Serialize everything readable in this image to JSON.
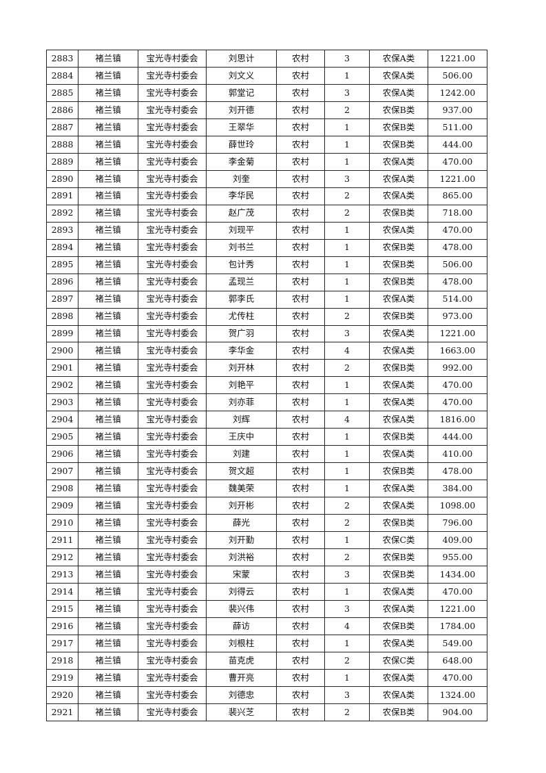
{
  "columns": [
    "seq",
    "town",
    "committee",
    "name",
    "type",
    "count",
    "category",
    "amount"
  ],
  "rows": [
    [
      "2883",
      "褚兰镇",
      "宝光寺村委会",
      "刘思计",
      "农村",
      "3",
      "农保A类",
      "1221.00"
    ],
    [
      "2884",
      "褚兰镇",
      "宝光寺村委会",
      "刘文义",
      "农村",
      "1",
      "农保A类",
      "506.00"
    ],
    [
      "2885",
      "褚兰镇",
      "宝光寺村委会",
      "郭堂记",
      "农村",
      "3",
      "农保A类",
      "1242.00"
    ],
    [
      "2886",
      "褚兰镇",
      "宝光寺村委会",
      "刘开德",
      "农村",
      "2",
      "农保B类",
      "937.00"
    ],
    [
      "2887",
      "褚兰镇",
      "宝光寺村委会",
      "王翠华",
      "农村",
      "1",
      "农保B类",
      "511.00"
    ],
    [
      "2888",
      "褚兰镇",
      "宝光寺村委会",
      "薛世玲",
      "农村",
      "1",
      "农保B类",
      "444.00"
    ],
    [
      "2889",
      "褚兰镇",
      "宝光寺村委会",
      "李金菊",
      "农村",
      "1",
      "农保A类",
      "470.00"
    ],
    [
      "2890",
      "褚兰镇",
      "宝光寺村委会",
      "刘奎",
      "农村",
      "3",
      "农保A类",
      "1221.00"
    ],
    [
      "2891",
      "褚兰镇",
      "宝光寺村委会",
      "李华民",
      "农村",
      "2",
      "农保A类",
      "865.00"
    ],
    [
      "2892",
      "褚兰镇",
      "宝光寺村委会",
      "赵广茂",
      "农村",
      "2",
      "农保B类",
      "718.00"
    ],
    [
      "2893",
      "褚兰镇",
      "宝光寺村委会",
      "刘现平",
      "农村",
      "1",
      "农保A类",
      "470.00"
    ],
    [
      "2894",
      "褚兰镇",
      "宝光寺村委会",
      "刘书兰",
      "农村",
      "1",
      "农保B类",
      "478.00"
    ],
    [
      "2895",
      "褚兰镇",
      "宝光寺村委会",
      "包计秀",
      "农村",
      "1",
      "农保B类",
      "506.00"
    ],
    [
      "2896",
      "褚兰镇",
      "宝光寺村委会",
      "孟现兰",
      "农村",
      "1",
      "农保B类",
      "478.00"
    ],
    [
      "2897",
      "褚兰镇",
      "宝光寺村委会",
      "郭李氏",
      "农村",
      "1",
      "农保A类",
      "514.00"
    ],
    [
      "2898",
      "褚兰镇",
      "宝光寺村委会",
      "尤传柱",
      "农村",
      "2",
      "农保B类",
      "973.00"
    ],
    [
      "2899",
      "褚兰镇",
      "宝光寺村委会",
      "贺广羽",
      "农村",
      "3",
      "农保A类",
      "1221.00"
    ],
    [
      "2900",
      "褚兰镇",
      "宝光寺村委会",
      "李华金",
      "农村",
      "4",
      "农保A类",
      "1663.00"
    ],
    [
      "2901",
      "褚兰镇",
      "宝光寺村委会",
      "刘开林",
      "农村",
      "2",
      "农保B类",
      "992.00"
    ],
    [
      "2902",
      "褚兰镇",
      "宝光寺村委会",
      "刘艳平",
      "农村",
      "1",
      "农保A类",
      "470.00"
    ],
    [
      "2903",
      "褚兰镇",
      "宝光寺村委会",
      "刘亦菲",
      "农村",
      "1",
      "农保A类",
      "470.00"
    ],
    [
      "2904",
      "褚兰镇",
      "宝光寺村委会",
      "刘辉",
      "农村",
      "4",
      "农保A类",
      "1816.00"
    ],
    [
      "2905",
      "褚兰镇",
      "宝光寺村委会",
      "王庆中",
      "农村",
      "1",
      "农保B类",
      "444.00"
    ],
    [
      "2906",
      "褚兰镇",
      "宝光寺村委会",
      "刘建",
      "农村",
      "1",
      "农保A类",
      "410.00"
    ],
    [
      "2907",
      "褚兰镇",
      "宝光寺村委会",
      "贺文超",
      "农村",
      "1",
      "农保B类",
      "478.00"
    ],
    [
      "2908",
      "褚兰镇",
      "宝光寺村委会",
      "魏美荣",
      "农村",
      "1",
      "农保A类",
      "384.00"
    ],
    [
      "2909",
      "褚兰镇",
      "宝光寺村委会",
      "刘开彬",
      "农村",
      "2",
      "农保A类",
      "1098.00"
    ],
    [
      "2910",
      "褚兰镇",
      "宝光寺村委会",
      "薛光",
      "农村",
      "2",
      "农保B类",
      "796.00"
    ],
    [
      "2911",
      "褚兰镇",
      "宝光寺村委会",
      "刘开勤",
      "农村",
      "1",
      "农保C类",
      "409.00"
    ],
    [
      "2912",
      "褚兰镇",
      "宝光寺村委会",
      "刘洪裕",
      "农村",
      "2",
      "农保B类",
      "955.00"
    ],
    [
      "2913",
      "褚兰镇",
      "宝光寺村委会",
      "宋蒙",
      "农村",
      "3",
      "农保B类",
      "1434.00"
    ],
    [
      "2914",
      "褚兰镇",
      "宝光寺村委会",
      "刘得云",
      "农村",
      "1",
      "农保A类",
      "470.00"
    ],
    [
      "2915",
      "褚兰镇",
      "宝光寺村委会",
      "裴兴伟",
      "农村",
      "3",
      "农保A类",
      "1221.00"
    ],
    [
      "2916",
      "褚兰镇",
      "宝光寺村委会",
      "薛访",
      "农村",
      "4",
      "农保B类",
      "1784.00"
    ],
    [
      "2917",
      "褚兰镇",
      "宝光寺村委会",
      "刘根柱",
      "农村",
      "1",
      "农保A类",
      "549.00"
    ],
    [
      "2918",
      "褚兰镇",
      "宝光寺村委会",
      "苗克虎",
      "农村",
      "2",
      "农保C类",
      "648.00"
    ],
    [
      "2919",
      "褚兰镇",
      "宝光寺村委会",
      "曹开亮",
      "农村",
      "1",
      "农保A类",
      "470.00"
    ],
    [
      "2920",
      "褚兰镇",
      "宝光寺村委会",
      "刘德忠",
      "农村",
      "3",
      "农保A类",
      "1324.00"
    ],
    [
      "2921",
      "褚兰镇",
      "宝光寺村委会",
      "裴兴芝",
      "农村",
      "2",
      "农保B类",
      "904.00"
    ]
  ]
}
